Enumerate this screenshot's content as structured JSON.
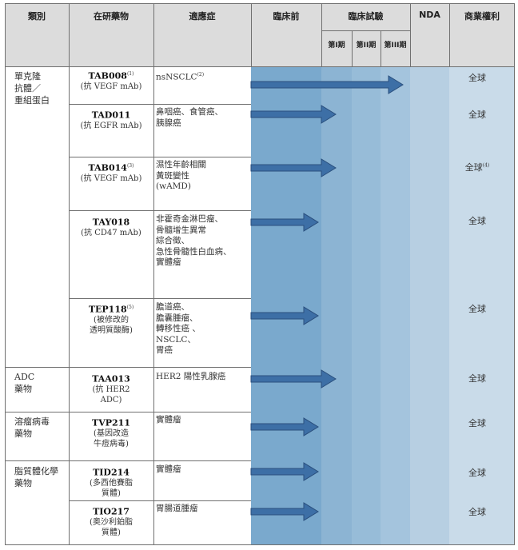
{
  "header": {
    "category": "類別",
    "drug": "在研藥物",
    "indication": "適應症",
    "preclinical": "臨床前",
    "clinical": "臨床試驗",
    "nda": "NDA",
    "rights": "商業權利",
    "phases": [
      "第I期",
      "第II期",
      "第III期"
    ]
  },
  "categories": [
    {
      "label": "單克隆\n抗體／\n重組蛋白"
    },
    {
      "label": "ADC\n藥物"
    },
    {
      "label": "溶瘤病毒\n藥物"
    },
    {
      "label": "脂質體化學\n藥物"
    }
  ],
  "rows": [
    {
      "code": "TAB008",
      "note": "(1)",
      "target": "(抗 VEGF mAb)",
      "indication": "nsNSCLC",
      "indication_note": "(2)",
      "rights": "全球",
      "rights_note": "",
      "stage": "第III期"
    },
    {
      "code": "TAD011",
      "note": "",
      "target": "(抗 EGFR mAb)",
      "indication": "鼻咽癌、食管癌、\n胰腺癌",
      "indication_note": "",
      "rights": "全球",
      "rights_note": "",
      "stage": "第I期"
    },
    {
      "code": "TAB014",
      "note": "(3)",
      "target": "(抗 VEGF mAb)",
      "indication": "濕性年齡相關\n黃斑變性\n(wAMD)",
      "indication_note": "",
      "rights": "全球",
      "rights_note": "(4)",
      "stage": "第I期"
    },
    {
      "code": "TAY018",
      "note": "",
      "target": "(抗 CD47 mAb)",
      "indication": "非霍奇金淋巴瘤、\n骨髓增生異常\n綜合徵、\n急性骨髓性白血病、\n實體瘤",
      "indication_note": "",
      "rights": "全球",
      "rights_note": "",
      "stage": "臨床前"
    },
    {
      "code": "TEP118",
      "note": "(5)",
      "target": "(被修改的\n透明質酸酶)",
      "indication": "膽道癌、\n膽囊腫瘤、\n轉移性癌 、\nNSCLC、\n胃癌",
      "indication_note": "",
      "rights": "全球",
      "rights_note": "",
      "stage": "臨床前"
    },
    {
      "code": "TAA013",
      "note": "",
      "target": "(抗 HER2\nADC)",
      "indication": "HER2 陽性乳腺癌",
      "indication_note": "",
      "rights": "全球",
      "rights_note": "",
      "stage": "第I期"
    },
    {
      "code": "TVP211",
      "note": "",
      "target": "(基因改造\n牛痘病毒)",
      "indication": "實體瘤",
      "indication_note": "",
      "rights": "全球",
      "rights_note": "",
      "stage": "臨床前"
    },
    {
      "code": "TID214",
      "note": "",
      "target": "(多西他賽脂\n質體)",
      "indication": "實體瘤",
      "indication_note": "",
      "rights": "全球",
      "rights_note": "",
      "stage": "臨床前"
    },
    {
      "code": "TIO217",
      "note": "",
      "target": "(奥沙利鉑脂\n質體)",
      "indication": "胃腸道腫瘤",
      "indication_note": "",
      "rights": "全球",
      "rights_note": "",
      "stage": "臨床前"
    }
  ],
  "colors": {
    "header_bg": "#dcdcdc",
    "preclinical_bg": "#7aa9cd",
    "phase1_bg": "#8cb4d3",
    "phase2_bg": "#97bcd8",
    "phase3_bg": "#a4c4dd",
    "nda_bg": "#b7cfe2",
    "rights_bg": "#c9dbe9",
    "arrow_fill": "#3d6fa6",
    "arrow_stroke": "#2a4f7d"
  }
}
